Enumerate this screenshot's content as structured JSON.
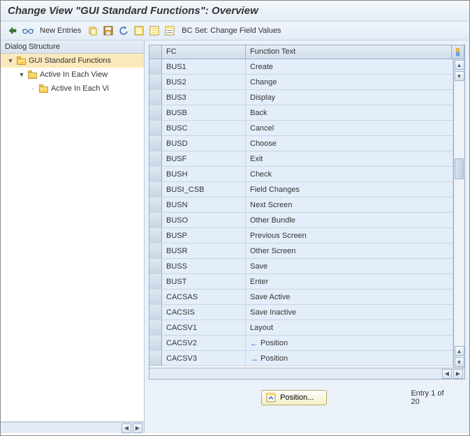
{
  "title": "Change View \"GUI Standard Functions\": Overview",
  "toolbar": {
    "new_entries": "New Entries",
    "bc_set": "BC Set: Change Field Values"
  },
  "tree": {
    "header": "Dialog Structure",
    "nodes": [
      {
        "label": "GUI Standard Functions",
        "level": 0,
        "expanded": true,
        "selected": true
      },
      {
        "label": "Active In Each View",
        "level": 1,
        "expanded": true,
        "selected": false
      },
      {
        "label": "Active In Each Vi",
        "level": 2,
        "expanded": false,
        "selected": false
      }
    ]
  },
  "table": {
    "columns": {
      "fc": "FC",
      "ft": "Function Text"
    },
    "rows": [
      {
        "fc": "BUS1",
        "ft": "Create",
        "icon": null
      },
      {
        "fc": "BUS2",
        "ft": "Change",
        "icon": null
      },
      {
        "fc": "BUS3",
        "ft": "Display",
        "icon": null
      },
      {
        "fc": "BUSB",
        "ft": "Back",
        "icon": null
      },
      {
        "fc": "BUSC",
        "ft": "Cancel",
        "icon": null
      },
      {
        "fc": "BUSD",
        "ft": "Choose",
        "icon": null
      },
      {
        "fc": "BUSF",
        "ft": "Exit",
        "icon": null
      },
      {
        "fc": "BUSH",
        "ft": "Check",
        "icon": null
      },
      {
        "fc": "BUSI_CSB",
        "ft": "Field Changes",
        "icon": null
      },
      {
        "fc": "BUSN",
        "ft": "Next Screen",
        "icon": null
      },
      {
        "fc": "BUSO",
        "ft": "Other Bundle",
        "icon": null
      },
      {
        "fc": "BUSP",
        "ft": "Previous Screen",
        "icon": null
      },
      {
        "fc": "BUSR",
        "ft": "Other Screen",
        "icon": null
      },
      {
        "fc": "BUSS",
        "ft": "Save",
        "icon": null
      },
      {
        "fc": "BUST",
        "ft": "Enter",
        "icon": null
      },
      {
        "fc": "CACSAS",
        "ft": "Save Active",
        "icon": null
      },
      {
        "fc": "CACSIS",
        "ft": "Save Inactive",
        "icon": null
      },
      {
        "fc": "CACSV1",
        "ft": "Layout",
        "icon": null
      },
      {
        "fc": "CACSV2",
        "ft": "Position",
        "icon": "left"
      },
      {
        "fc": "CACSV3",
        "ft": "Position",
        "icon": "right"
      }
    ]
  },
  "footer": {
    "position_btn": "Position...",
    "entry_text": "Entry 1 of 20"
  },
  "colors": {
    "header_grad_top": "#e5edf6",
    "header_grad_bot": "#d2deec",
    "cell_bg": "#e4eefa",
    "selected_bg": "#fce9bb",
    "border": "#9cb0c8"
  }
}
